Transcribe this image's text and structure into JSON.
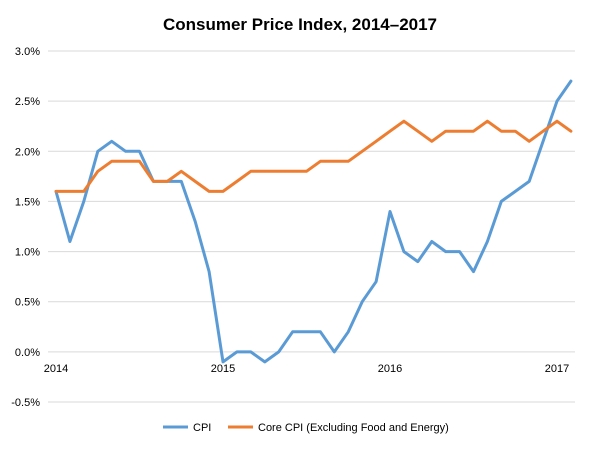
{
  "chart_data": {
    "type": "line",
    "title": "Consumer Price Index, 2014–2017",
    "xlabel": "",
    "ylabel": "",
    "ylim": [
      -0.5,
      3.0
    ],
    "y_ticks": [
      3.0,
      2.5,
      2.0,
      1.5,
      1.0,
      0.5,
      0.0,
      -0.5
    ],
    "y_tick_labels": [
      "3.0%",
      "2.5%",
      "2.0%",
      "1.5%",
      "1.0%",
      "0.5%",
      "0.0%",
      "-0.5%"
    ],
    "x_range": [
      0,
      36.5
    ],
    "x_ticks": [
      0,
      12,
      24,
      36
    ],
    "x_tick_labels": [
      "2014",
      "2015",
      "2016",
      "2017"
    ],
    "grid": "horizontal",
    "legend": "bottom",
    "series": [
      {
        "name": "CPI",
        "color": "#5B9BD5",
        "x": [
          0,
          1,
          2,
          3,
          4,
          5,
          6,
          7,
          8,
          9,
          10,
          11,
          12,
          13,
          14,
          15,
          16,
          17,
          18,
          19,
          20,
          21,
          22,
          23,
          24,
          25,
          26,
          27,
          28,
          29,
          30,
          31,
          32,
          33,
          34,
          35,
          36,
          37
        ],
        "values": [
          1.6,
          1.1,
          1.5,
          2.0,
          2.1,
          2.0,
          2.0,
          1.7,
          1.7,
          1.7,
          1.3,
          0.8,
          -0.1,
          0.0,
          0.0,
          -0.1,
          0.0,
          0.2,
          0.2,
          0.2,
          0.0,
          0.2,
          0.5,
          0.7,
          1.4,
          1.0,
          0.9,
          1.1,
          1.0,
          1.0,
          0.8,
          1.1,
          1.5,
          1.6,
          1.7,
          2.1,
          2.5,
          2.7
        ]
      },
      {
        "name": "Core CPI (Excluding Food and Energy)",
        "color": "#ED7D31",
        "x": [
          0,
          1,
          2,
          3,
          4,
          5,
          6,
          7,
          8,
          9,
          10,
          11,
          12,
          13,
          14,
          15,
          16,
          17,
          18,
          19,
          20,
          21,
          22,
          23,
          24,
          25,
          26,
          27,
          28,
          29,
          30,
          31,
          32,
          33,
          34,
          35,
          36,
          37
        ],
        "values": [
          1.6,
          1.6,
          1.6,
          1.8,
          1.9,
          1.9,
          1.9,
          1.7,
          1.7,
          1.8,
          1.7,
          1.6,
          1.6,
          1.7,
          1.8,
          1.8,
          1.8,
          1.8,
          1.8,
          1.9,
          1.9,
          1.9,
          2.0,
          2.1,
          2.2,
          2.3,
          2.2,
          2.1,
          2.2,
          2.2,
          2.2,
          2.3,
          2.2,
          2.2,
          2.1,
          2.2,
          2.3,
          2.2
        ]
      }
    ]
  }
}
